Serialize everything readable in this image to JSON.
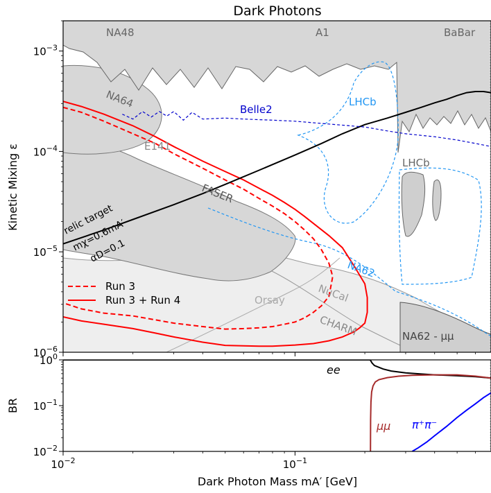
{
  "chart_data": [
    {
      "type": "line",
      "title": "Dark Photons",
      "xlabel": "",
      "ylabel": "Kinetic Mixing ε",
      "xscale": "log",
      "yscale": "log",
      "xlim": [
        0.01,
        0.7
      ],
      "ylim": [
        1e-06,
        0.002
      ],
      "y_ticks": [
        {
          "value": 1e-06,
          "mant": "10",
          "exp": "−6"
        },
        {
          "value": 1e-05,
          "mant": "10",
          "exp": "−5"
        },
        {
          "value": 0.0001,
          "mant": "10",
          "exp": "−4"
        },
        {
          "value": 0.001,
          "mant": "10",
          "exp": "−3"
        }
      ],
      "region_labels": [
        {
          "text": "NA48",
          "color": "#666666",
          "rotate": 0
        },
        {
          "text": "A1",
          "color": "#666666",
          "rotate": 0
        },
        {
          "text": "BaBar",
          "color": "#666666",
          "rotate": 0
        },
        {
          "text": "NA64",
          "color": "#666666",
          "rotate": 22
        },
        {
          "text": "E141",
          "color": "#888888",
          "rotate": 0
        },
        {
          "text": "FASER",
          "color": "#555555",
          "rotate": 22
        },
        {
          "text": "LHCb",
          "color": "#2196f3",
          "rotate": 0
        },
        {
          "text": "LHCb",
          "color": "#666666",
          "rotate": 0
        },
        {
          "text": "Belle2",
          "color": "#0000cc",
          "rotate": 0
        },
        {
          "text": "NA62",
          "color": "#2196f3",
          "rotate": 20
        },
        {
          "text": "NuCal",
          "color": "#999999",
          "rotate": 20
        },
        {
          "text": "Orsay",
          "color": "#aaaaaa",
          "rotate": 0
        },
        {
          "text": "CHARM",
          "color": "#888888",
          "rotate": 20
        },
        {
          "text": "NA62 - μμ",
          "color": "#444444",
          "rotate": 0
        }
      ],
      "relic_labels": {
        "line1": "relic target",
        "line2": "mχ=0.6mA′",
        "line3": "αD=0.1"
      },
      "legend": {
        "position": "lower-left",
        "entries": [
          {
            "label": "Run 3",
            "color": "#ff0000",
            "style": "dashed"
          },
          {
            "label": "Run 3 + Run 4",
            "color": "#ff0000",
            "style": "solid"
          }
        ]
      },
      "series": [
        {
          "name": "Run 3",
          "color": "#ff0000",
          "style": "dashed",
          "x": [
            0.01,
            0.012,
            0.015,
            0.02,
            0.025,
            0.03,
            0.04,
            0.05,
            0.06,
            0.07,
            0.08,
            0.09,
            0.1,
            0.11,
            0.12,
            0.13,
            0.14,
            0.145,
            0.145,
            0.14,
            0.13,
            0.12,
            0.11,
            0.1,
            0.09,
            0.08,
            0.07,
            0.06,
            0.05,
            0.04,
            0.03,
            0.025,
            0.02,
            0.015,
            0.012,
            0.01
          ],
          "y": [
            0.000275,
            0.000245,
            0.0002,
            0.00015,
            0.00012,
            9.5e-05,
            6.8e-05,
            5.2e-05,
            4.2e-05,
            3.4e-05,
            2.85e-05,
            2.4e-05,
            2e-05,
            1.65e-05,
            1.35e-05,
            1.05e-05,
            7.7e-06,
            5.8e-06,
            5.5e-06,
            3.6e-06,
            2.9e-06,
            2.5e-06,
            2.2e-06,
            2e-06,
            1.9e-06,
            1.8e-06,
            1.75e-06,
            1.72e-06,
            1.7e-06,
            1.8e-06,
            1.95e-06,
            2.1e-06,
            2.3e-06,
            2.45e-06,
            2.7e-06,
            3.1e-06
          ]
        },
        {
          "name": "Run 3 + Run 4",
          "color": "#ff0000",
          "style": "solid",
          "x": [
            0.01,
            0.012,
            0.015,
            0.02,
            0.025,
            0.03,
            0.04,
            0.05,
            0.06,
            0.07,
            0.08,
            0.09,
            0.1,
            0.11,
            0.12,
            0.14,
            0.16,
            0.18,
            0.2,
            0.205,
            0.205,
            0.2,
            0.19,
            0.18,
            0.16,
            0.14,
            0.12,
            0.1,
            0.08,
            0.07,
            0.06,
            0.05,
            0.04,
            0.03,
            0.025,
            0.02,
            0.015,
            0.012,
            0.01
          ],
          "y": [
            0.000315,
            0.00028,
            0.000235,
            0.00018,
            0.00014,
            0.000112,
            8e-05,
            6.3e-05,
            5.2e-05,
            4.3e-05,
            3.65e-05,
            3.1e-05,
            2.65e-05,
            2.25e-05,
            1.92e-05,
            1.45e-05,
            1.1e-05,
            7.2e-06,
            4.8e-06,
            3.5e-06,
            2.5e-06,
            1.95e-06,
            1.75e-06,
            1.6e-06,
            1.42e-06,
            1.3e-06,
            1.22e-06,
            1.18e-06,
            1.15e-06,
            1.15e-06,
            1.16e-06,
            1.17e-06,
            1.26e-06,
            1.42e-06,
            1.55e-06,
            1.72e-06,
            1.9e-06,
            2.05e-06,
            2.25e-06
          ]
        },
        {
          "name": "relic target",
          "color": "#000000",
          "style": "solid",
          "x": [
            0.01,
            0.015,
            0.02,
            0.03,
            0.04,
            0.05,
            0.07,
            0.1,
            0.13,
            0.16,
            0.2,
            0.25,
            0.3,
            0.35,
            0.4,
            0.45,
            0.5,
            0.55,
            0.6,
            0.65,
            0.7
          ],
          "y": [
            1.2e-05,
            1.65e-05,
            2.1e-05,
            2.95e-05,
            3.8e-05,
            4.7e-05,
            6.5e-05,
            9.2e-05,
            0.00012,
            0.00015,
            0.000185,
            0.000215,
            0.000245,
            0.000275,
            0.000305,
            0.00033,
            0.00036,
            0.000385,
            0.000395,
            0.000395,
            0.000385
          ]
        },
        {
          "name": "Belle2",
          "color": "#0000cc",
          "style": "dashed",
          "x": [
            0.018,
            0.02,
            0.022,
            0.024,
            0.026,
            0.028,
            0.03,
            0.033,
            0.036,
            0.04,
            0.05,
            0.06,
            0.08,
            0.1,
            0.13,
            0.15,
            0.2,
            0.25,
            0.3,
            0.4,
            0.5,
            0.6,
            0.7
          ],
          "y": [
            0.000235,
            0.00021,
            0.00025,
            0.00022,
            0.00025,
            0.000225,
            0.00025,
            0.000205,
            0.000245,
            0.00021,
            0.000215,
            0.00021,
            0.000205,
            0.0002,
            0.00019,
            0.000185,
            0.000175,
            0.00016,
            0.00015,
            0.00014,
            0.00013,
            0.00012,
            0.000112
          ]
        }
      ]
    },
    {
      "type": "line",
      "title": "",
      "xlabel": "Dark Photon Mass mA′ [GeV]",
      "ylabel": "BR",
      "xscale": "log",
      "yscale": "log",
      "xlim": [
        0.01,
        0.7
      ],
      "ylim": [
        0.01,
        1.0
      ],
      "x_ticks": [
        {
          "value": 0.01,
          "mant": "10",
          "exp": "−2"
        },
        {
          "value": 0.1,
          "mant": "10",
          "exp": "−1"
        }
      ],
      "y_ticks": [
        {
          "value": 0.01,
          "mant": "10",
          "exp": "−2"
        },
        {
          "value": 0.1,
          "mant": "10",
          "exp": "−1"
        },
        {
          "value": 1.0,
          "mant": "10",
          "exp": "0"
        }
      ],
      "series_labels": [
        {
          "text": "ee",
          "color": "#000000"
        },
        {
          "text": "μμ",
          "color": "#a52a2a"
        },
        {
          "text": "π⁺π⁻",
          "color": "#0000ff"
        }
      ],
      "series": [
        {
          "name": "ee",
          "color": "#000000",
          "x": [
            0.01,
            0.05,
            0.1,
            0.2,
            0.211,
            0.215,
            0.22,
            0.24,
            0.26,
            0.3,
            0.35,
            0.4,
            0.5,
            0.6,
            0.7
          ],
          "y": [
            1.0,
            1.0,
            1.0,
            1.0,
            1.0,
            0.85,
            0.75,
            0.63,
            0.57,
            0.52,
            0.49,
            0.47,
            0.45,
            0.43,
            0.4
          ]
        },
        {
          "name": "μμ",
          "color": "#a52a2a",
          "x": [
            0.2115,
            0.2118,
            0.2125,
            0.214,
            0.217,
            0.222,
            0.23,
            0.25,
            0.28,
            0.32,
            0.4,
            0.5,
            0.6,
            0.7
          ],
          "y": [
            0.01,
            0.05,
            0.12,
            0.2,
            0.27,
            0.33,
            0.37,
            0.41,
            0.44,
            0.46,
            0.47,
            0.47,
            0.44,
            0.4
          ]
        },
        {
          "name": "π⁺π⁻",
          "color": "#0000ff",
          "x": [
            0.32,
            0.34,
            0.37,
            0.4,
            0.45,
            0.5,
            0.55,
            0.6,
            0.65,
            0.7
          ],
          "y": [
            0.01,
            0.012,
            0.016,
            0.022,
            0.035,
            0.055,
            0.08,
            0.11,
            0.15,
            0.19
          ]
        }
      ]
    }
  ]
}
